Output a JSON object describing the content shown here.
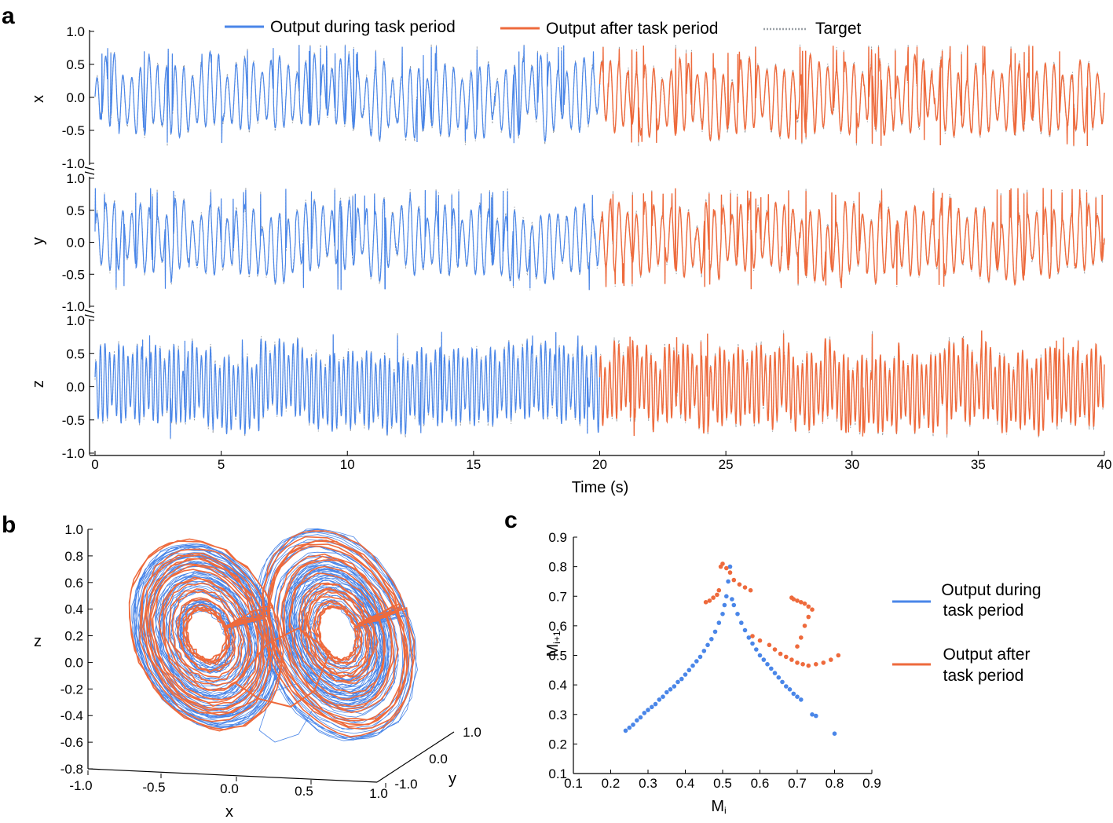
{
  "panels": [
    "a",
    "b",
    "c"
  ],
  "colors": {
    "during": "#4a86e8",
    "after": "#ee6a3c",
    "target": "#9aa0a6",
    "axis": "#000000"
  },
  "chart_data": [
    {
      "type": "line",
      "legend": {
        "placement": "top",
        "entries": [
          "Output during task period",
          "Output after task period",
          "Target"
        ]
      },
      "xlabel": "Time (s)",
      "xlim": [
        0,
        40
      ],
      "xticks": [
        "0",
        "5",
        "10",
        "15",
        "20",
        "25",
        "30",
        "35",
        "40"
      ],
      "yticks": [
        "1.0",
        "0.5",
        "0.0",
        "-0.5",
        "-1.0"
      ],
      "ylim": [
        -1,
        1
      ],
      "task_end": 20,
      "subplots": [
        {
          "ylabel": "x",
          "range": [
            -0.75,
            0.8
          ],
          "amplitude": 0.55,
          "freq": 2.9,
          "spike_rate": 2.1
        },
        {
          "ylabel": "y",
          "range": [
            -0.75,
            0.85
          ],
          "amplitude": 0.55,
          "freq": 2.9,
          "spike_rate": 2.1
        },
        {
          "ylabel": "z",
          "range": [
            -0.8,
            0.85
          ],
          "amplitude": 0.6,
          "freq": 5.5,
          "spike_rate": 0.6
        }
      ],
      "series": [
        {
          "name": "Output during task period"
        },
        {
          "name": "Output after task period"
        },
        {
          "name": "Target"
        }
      ]
    },
    {
      "type": "line",
      "zlabel": "z",
      "xlabel": "x",
      "ylabel": "y",
      "zticks": [
        "1.0",
        "0.8",
        "0.6",
        "0.4",
        "0.2",
        "0.0",
        "-0.2",
        "-0.4",
        "-0.6",
        "-0.8"
      ],
      "zlim": [
        -0.8,
        1.0
      ],
      "xticks": [
        "-1.0",
        "-0.5",
        "0.0",
        "0.5",
        "1.0"
      ],
      "yticks": [
        "-1.0",
        "0.0",
        "1.0"
      ],
      "series": [
        {
          "name": "Output during task period"
        },
        {
          "name": "Output after task period"
        }
      ]
    },
    {
      "type": "scatter",
      "xlabel": "M",
      "xlabel_sub": "i",
      "ylabel": "M",
      "ylabel_sub": "i+1",
      "xlim": [
        0.1,
        0.9
      ],
      "ylim": [
        0.1,
        0.9
      ],
      "xticks": [
        "0.1",
        "0.2",
        "0.3",
        "0.4",
        "0.5",
        "0.6",
        "0.7",
        "0.8",
        "0.9"
      ],
      "yticks": [
        "0.9",
        "0.8",
        "0.7",
        "0.6",
        "0.5",
        "0.4",
        "0.3",
        "0.2",
        "0.1"
      ],
      "legend": {
        "placement": "right",
        "entries": [
          [
            "Output during",
            "task period"
          ],
          [
            "Output after",
            "task period"
          ]
        ]
      },
      "series": [
        {
          "name": "Output during task period",
          "points": [
            [
              0.24,
              0.245
            ],
            [
              0.25,
              0.255
            ],
            [
              0.26,
              0.265
            ],
            [
              0.27,
              0.28
            ],
            [
              0.28,
              0.29
            ],
            [
              0.29,
              0.305
            ],
            [
              0.3,
              0.315
            ],
            [
              0.31,
              0.325
            ],
            [
              0.32,
              0.335
            ],
            [
              0.33,
              0.35
            ],
            [
              0.34,
              0.36
            ],
            [
              0.35,
              0.375
            ],
            [
              0.36,
              0.385
            ],
            [
              0.37,
              0.395
            ],
            [
              0.38,
              0.41
            ],
            [
              0.39,
              0.42
            ],
            [
              0.4,
              0.435
            ],
            [
              0.41,
              0.45
            ],
            [
              0.42,
              0.465
            ],
            [
              0.43,
              0.48
            ],
            [
              0.44,
              0.495
            ],
            [
              0.45,
              0.515
            ],
            [
              0.46,
              0.535
            ],
            [
              0.47,
              0.555
            ],
            [
              0.48,
              0.58
            ],
            [
              0.49,
              0.61
            ],
            [
              0.5,
              0.64
            ],
            [
              0.505,
              0.67
            ],
            [
              0.51,
              0.7
            ],
            [
              0.515,
              0.75
            ],
            [
              0.52,
              0.8
            ],
            [
              0.525,
              0.69
            ],
            [
              0.53,
              0.67
            ],
            [
              0.54,
              0.64
            ],
            [
              0.55,
              0.61
            ],
            [
              0.56,
              0.585
            ],
            [
              0.57,
              0.56
            ],
            [
              0.58,
              0.54
            ],
            [
              0.59,
              0.52
            ],
            [
              0.6,
              0.5
            ],
            [
              0.61,
              0.485
            ],
            [
              0.62,
              0.47
            ],
            [
              0.63,
              0.455
            ],
            [
              0.64,
              0.44
            ],
            [
              0.65,
              0.425
            ],
            [
              0.66,
              0.41
            ],
            [
              0.67,
              0.395
            ],
            [
              0.68,
              0.385
            ],
            [
              0.69,
              0.37
            ],
            [
              0.7,
              0.36
            ],
            [
              0.71,
              0.35
            ],
            [
              0.74,
              0.3
            ],
            [
              0.75,
              0.295
            ],
            [
              0.8,
              0.235
            ]
          ]
        },
        {
          "name": "Output after task period",
          "points": [
            [
              0.455,
              0.68
            ],
            [
              0.465,
              0.685
            ],
            [
              0.475,
              0.695
            ],
            [
              0.485,
              0.705
            ],
            [
              0.49,
              0.72
            ],
            [
              0.495,
              0.8
            ],
            [
              0.5,
              0.81
            ],
            [
              0.51,
              0.795
            ],
            [
              0.52,
              0.78
            ],
            [
              0.53,
              0.755
            ],
            [
              0.545,
              0.74
            ],
            [
              0.56,
              0.73
            ],
            [
              0.575,
              0.72
            ],
            [
              0.58,
              0.565
            ],
            [
              0.6,
              0.55
            ],
            [
              0.625,
              0.535
            ],
            [
              0.64,
              0.52
            ],
            [
              0.655,
              0.505
            ],
            [
              0.67,
              0.495
            ],
            [
              0.685,
              0.485
            ],
            [
              0.7,
              0.475
            ],
            [
              0.715,
              0.47
            ],
            [
              0.73,
              0.465
            ],
            [
              0.75,
              0.47
            ],
            [
              0.77,
              0.475
            ],
            [
              0.79,
              0.485
            ],
            [
              0.81,
              0.5
            ],
            [
              0.7,
              0.53
            ],
            [
              0.71,
              0.56
            ],
            [
              0.72,
              0.6
            ],
            [
              0.73,
              0.63
            ],
            [
              0.74,
              0.655
            ],
            [
              0.73,
              0.665
            ],
            [
              0.72,
              0.675
            ],
            [
              0.71,
              0.68
            ],
            [
              0.7,
              0.685
            ],
            [
              0.69,
              0.69
            ],
            [
              0.685,
              0.695
            ]
          ]
        }
      ]
    }
  ]
}
